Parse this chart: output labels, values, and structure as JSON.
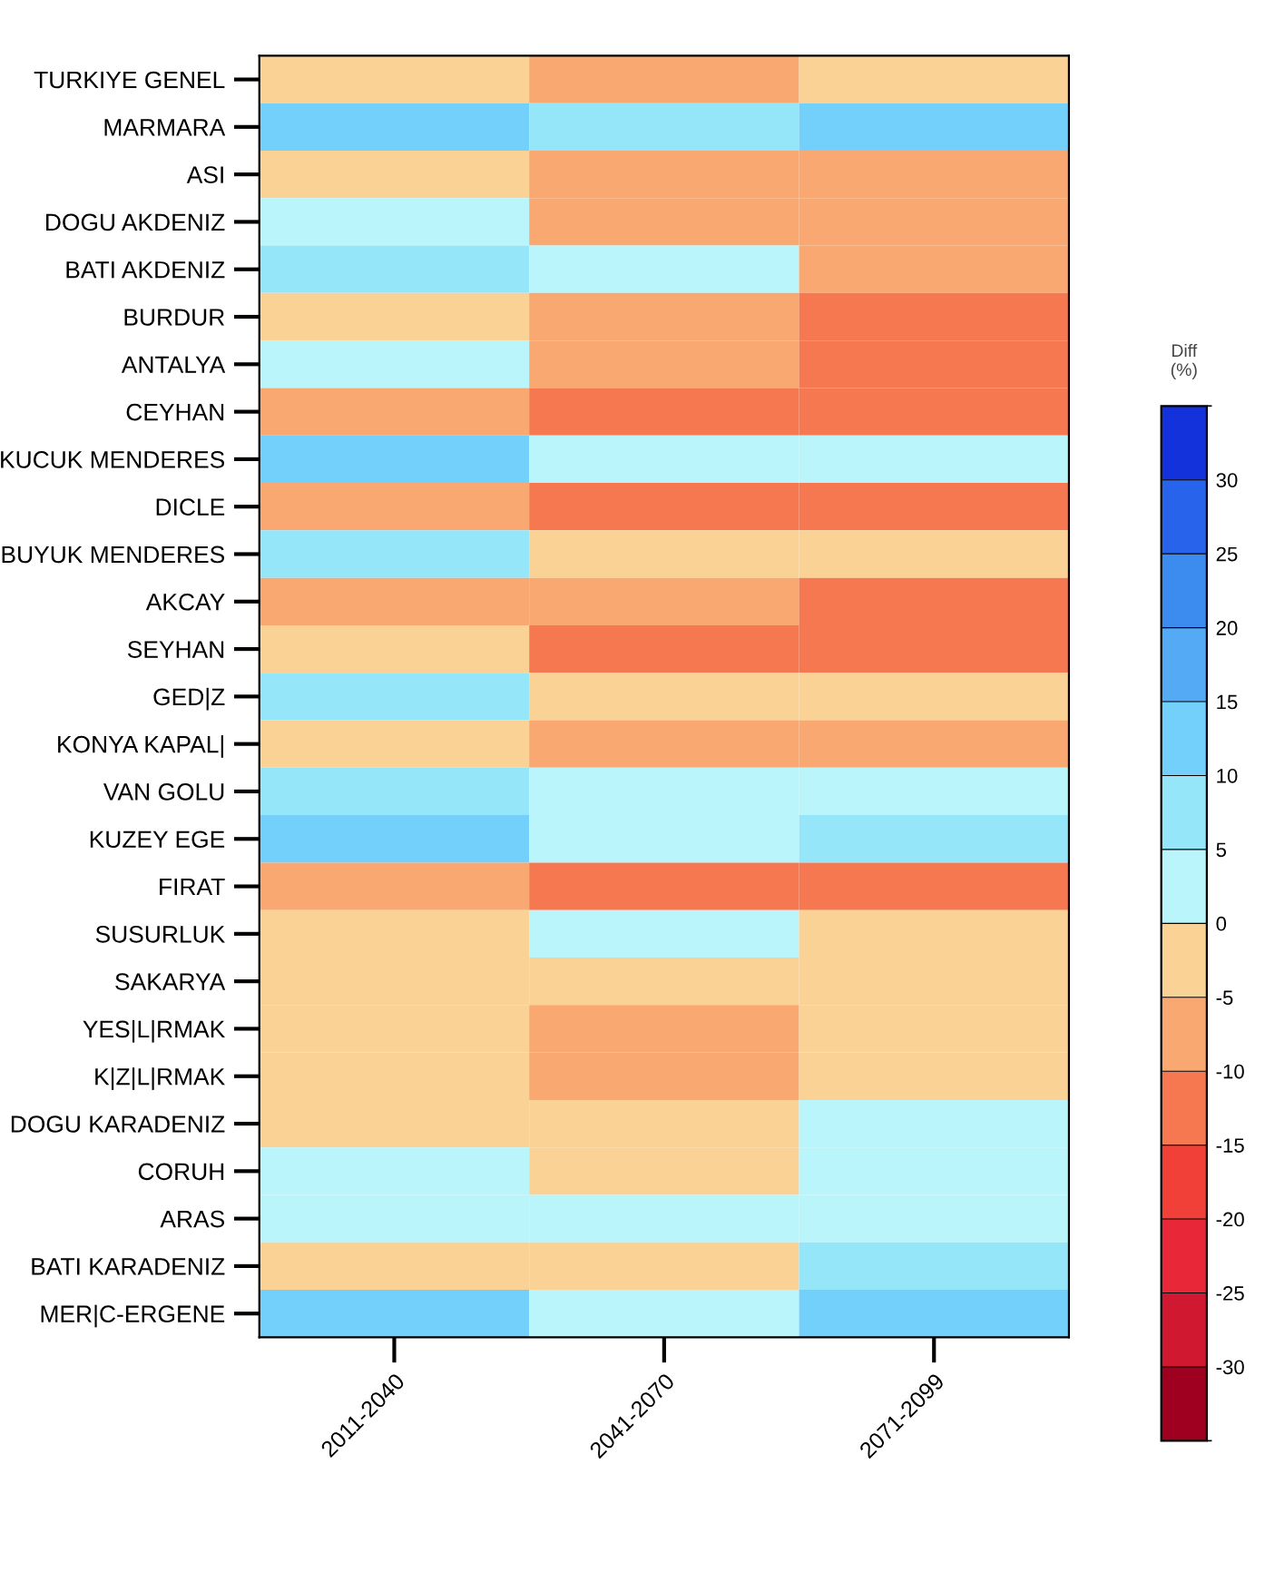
{
  "chart_data": {
    "type": "heatmap",
    "clabel": "Diff\n(%)",
    "categories": [
      "2011-2040",
      "2041-2070",
      "2071-2099"
    ],
    "y_categories": [
      "TURKIYE GENEL",
      "MARMARA",
      "ASI",
      "DOGU AKDENIZ",
      "BATI AKDENIZ",
      "BURDUR",
      "ANTALYA",
      "CEYHAN",
      "KUCUK MENDERES",
      "DICLE",
      "BUYUK MENDERES",
      "AKCAY",
      "SEYHAN",
      "GED|Z",
      "KONYA KAPAL|",
      "VAN GOLU",
      "KUZEY EGE",
      "FIRAT",
      "SUSURLUK",
      "SAKARYA",
      "YES|L|RMAK",
      "K|Z|L|RMAK",
      "DOGU KARADENIZ",
      "CORUH",
      "ARAS",
      "BATI KARADENIZ",
      "MER|C-ERGENE"
    ],
    "cells": [
      [
        -2.5,
        -7.5,
        -2.5
      ],
      [
        12.5,
        7.5,
        12.5
      ],
      [
        -2.5,
        -7.5,
        -7.5
      ],
      [
        2.5,
        -7.5,
        -7.5
      ],
      [
        7.5,
        2.5,
        -7.5
      ],
      [
        -2.5,
        -7.5,
        -12.5
      ],
      [
        2.5,
        -7.5,
        -12.5
      ],
      [
        -7.5,
        -12.5,
        -12.5
      ],
      [
        12.5,
        2.5,
        2.5
      ],
      [
        -7.5,
        -12.5,
        -12.5
      ],
      [
        7.5,
        -2.5,
        -2.5
      ],
      [
        -7.5,
        -7.5,
        -12.5
      ],
      [
        -2.5,
        -12.5,
        -12.5
      ],
      [
        7.5,
        -2.5,
        -2.5
      ],
      [
        -2.5,
        -7.5,
        -7.5
      ],
      [
        7.5,
        2.5,
        2.5
      ],
      [
        12.5,
        2.5,
        7.5
      ],
      [
        -7.5,
        -12.5,
        -12.5
      ],
      [
        -2.5,
        2.5,
        -2.5
      ],
      [
        -2.5,
        -2.5,
        -2.5
      ],
      [
        -2.5,
        -7.5,
        -2.5
      ],
      [
        -2.5,
        -7.5,
        -2.5
      ],
      [
        -2.5,
        -2.5,
        2.5
      ],
      [
        2.5,
        -2.5,
        2.5
      ],
      [
        2.5,
        2.5,
        2.5
      ],
      [
        -2.5,
        -2.5,
        7.5
      ],
      [
        12.5,
        2.5,
        12.5
      ]
    ],
    "clim": [
      -35,
      35
    ],
    "cticks": [
      30,
      25,
      20,
      15,
      10,
      5,
      0,
      -5,
      -10,
      -15,
      -20,
      -25,
      -30
    ],
    "colors": [
      "#a00020",
      "#d01830",
      "#e82838",
      "#f04038",
      "#f57850",
      "#f8a870",
      "#fad296",
      "#b9f5fa",
      "#96e6fa",
      "#73d0fa",
      "#55aaf5",
      "#3c8cf0",
      "#2864eb",
      "#1432dc"
    ]
  }
}
